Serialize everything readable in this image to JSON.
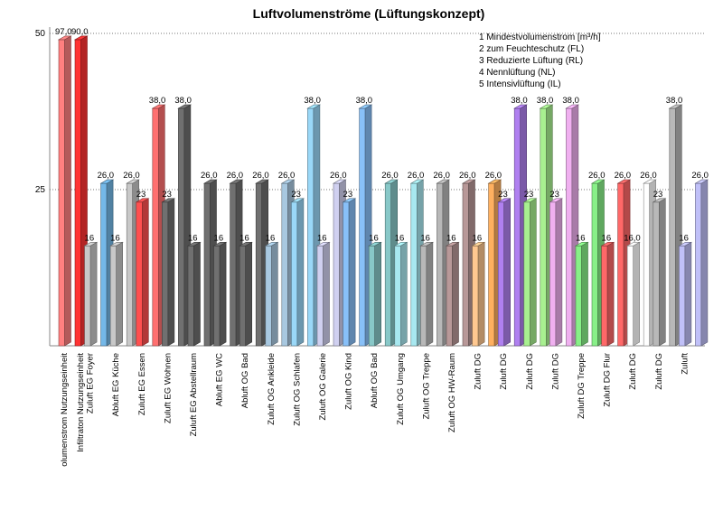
{
  "chart_data": {
    "type": "bar",
    "title": "Luftvolumenströme (Lüftungskonzept)",
    "yticks": [
      25,
      50
    ],
    "legend_position": "top-right",
    "legend": [
      "1 Mindestvolumenstrom [m³/h]",
      "2 zum Feuchteschutz (FL)",
      "3 Reduzierte Lüftung (RL)",
      "4 Nennlüftung (NL)",
      "5 Intensivlüftung (IL)"
    ],
    "categories": [
      "olumenstrom Nutzungseinheit",
      "Infiltraton Nutzungseinheit",
      "Zuluft EG Foyer",
      "Abluft EG  Küche",
      "Zuluft EG  Essen",
      "Zuluft EG Wohnen",
      "Zuluft EG Abstellraum",
      "Abluft EG WC",
      "Abluft OG Bad",
      "Zuluft OG Ankleide",
      "Zuluft OG Schlafen",
      "Zuluft OG Galerie",
      "Zuluft OG Kind",
      "Abluft OG Bad",
      "Zuluft OG Umgang",
      "Zuluft OG Treppe",
      "Zuluft OG HW-Raum",
      "Zuluft DG",
      "Zuluft DG",
      "Zuluft DG",
      "Zuluft DG",
      "Zuluft DG  Treppe",
      "Zuluft DG  Flur",
      "Zuluft DG",
      "Zuluft DG",
      "Zuluft"
    ],
    "bars": [
      {
        "value": 97.0,
        "label": "97,0",
        "color": "#ff8080"
      },
      {
        "value": 90.0,
        "label": "90,0",
        "color": "#ff3333"
      },
      {
        "value": 16,
        "label": "16",
        "color": "#c8c8c8"
      },
      {
        "value": 26.0,
        "label": "26,0",
        "color": "#74b8e8"
      },
      {
        "value": 16,
        "label": "16",
        "color": "#c8c8c8"
      },
      {
        "value": 26.0,
        "label": "26,0",
        "color": "#c8c8c8"
      },
      {
        "value": 23,
        "label": "23",
        "color": "#ff5050"
      },
      {
        "value": 38.0,
        "label": "38,0",
        "color": "#ff7070"
      },
      {
        "value": 23,
        "label": "23",
        "color": "#707070"
      },
      {
        "value": 38.0,
        "label": "38,0",
        "color": "#707070"
      },
      {
        "value": 16,
        "label": "16",
        "color": "#707070"
      },
      {
        "value": 26.0,
        "label": "26,0",
        "color": "#707070"
      },
      {
        "value": 16,
        "label": "16",
        "color": "#707070"
      },
      {
        "value": 26.0,
        "label": "26,0",
        "color": "#707070"
      },
      {
        "value": 16,
        "label": "16",
        "color": "#707070"
      },
      {
        "value": 26.0,
        "label": "26,0",
        "color": "#707070"
      },
      {
        "value": 16,
        "label": "16",
        "color": "#a8c8e0"
      },
      {
        "value": 26.0,
        "label": "26,0",
        "color": "#a8c8e0"
      },
      {
        "value": 23,
        "label": "23",
        "color": "#9ad8f8"
      },
      {
        "value": 38.0,
        "label": "38,0",
        "color": "#9ad8f8"
      },
      {
        "value": 16,
        "label": "16",
        "color": "#d0d0f0"
      },
      {
        "value": 26.0,
        "label": "26,0",
        "color": "#d0d0f0"
      },
      {
        "value": 23,
        "label": "23",
        "color": "#88c0f8"
      },
      {
        "value": 38.0,
        "label": "38,0",
        "color": "#88c0f8"
      },
      {
        "value": 16,
        "label": "16",
        "color": "#88c8c8"
      },
      {
        "value": 26.0,
        "label": "26,0",
        "color": "#88c8c8"
      },
      {
        "value": 16,
        "label": "16",
        "color": "#a8e8f0"
      },
      {
        "value": 26.0,
        "label": "26,0",
        "color": "#a8e8f0"
      },
      {
        "value": 16,
        "label": "16",
        "color": "#b8b8b8"
      },
      {
        "value": 26.0,
        "label": "26,0",
        "color": "#b8b8b8"
      },
      {
        "value": 16,
        "label": "16",
        "color": "#b89898"
      },
      {
        "value": 26.0,
        "label": "26,0",
        "color": "#b89898"
      },
      {
        "value": 16,
        "label": "16",
        "color": "#ffc890"
      },
      {
        "value": 26.0,
        "label": "26,0",
        "color": "#ffb060"
      },
      {
        "value": 23,
        "label": "23",
        "color": "#b080f0"
      },
      {
        "value": 38.0,
        "label": "38,0",
        "color": "#b080f0"
      },
      {
        "value": 23,
        "label": "23",
        "color": "#a8f090"
      },
      {
        "value": 38.0,
        "label": "38,0",
        "color": "#a8f090"
      },
      {
        "value": 23,
        "label": "23",
        "color": "#f0b0f0"
      },
      {
        "value": 38.0,
        "label": "38,0",
        "color": "#f0b0f0"
      },
      {
        "value": 16,
        "label": "16",
        "color": "#88f088"
      },
      {
        "value": 26.0,
        "label": "26,0",
        "color": "#88f088"
      },
      {
        "value": 16,
        "label": "16",
        "color": "#ff6868"
      },
      {
        "value": 26.0,
        "label": "26,0",
        "color": "#ff6868"
      },
      {
        "value": 16.0,
        "label": "16,0",
        "color": "#ffffff"
      },
      {
        "value": 26.0,
        "label": "26,0",
        "color": "#ffffff"
      },
      {
        "value": 23,
        "label": "23",
        "color": "#b8b8b8"
      },
      {
        "value": 38.0,
        "label": "38,0",
        "color": "#b8b8b8"
      },
      {
        "value": 16,
        "label": "16",
        "color": "#c0c0f8"
      },
      {
        "value": 26.0,
        "label": "26,0",
        "color": "#c0c0f8"
      }
    ]
  }
}
